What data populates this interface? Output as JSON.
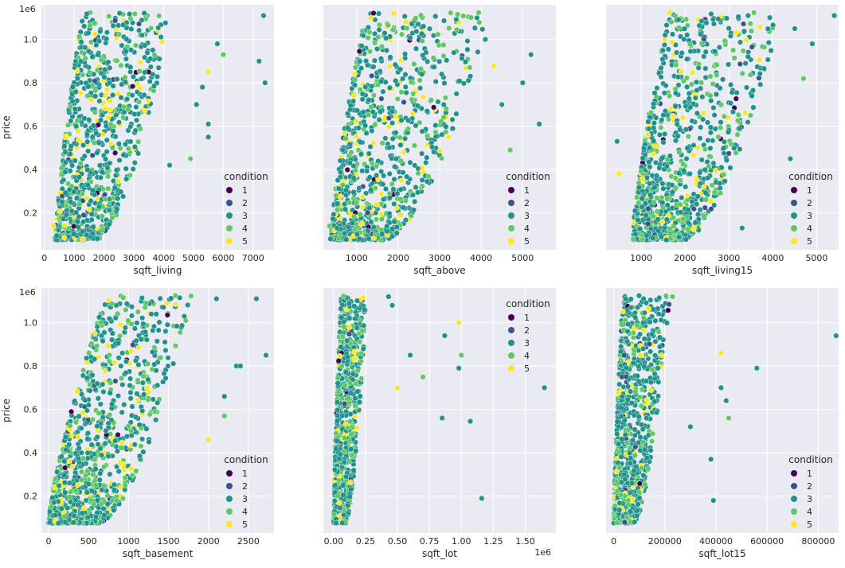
{
  "colors": {
    "panel_bg": "#eaeaf2",
    "grid": "#ffffff",
    "condition": {
      "1": "#440154",
      "2": "#3b528b",
      "3": "#21918c",
      "4": "#5ec962",
      "5": "#fde725"
    }
  },
  "legend": {
    "title": "condition",
    "labels": [
      "1",
      "2",
      "3",
      "4",
      "5"
    ]
  },
  "chart_data": [
    {
      "type": "scatter",
      "name": "sqft_living",
      "xlabel": "sqft_living",
      "ylabel": "price",
      "y_multiplier": "1e6",
      "x_multiplier": "",
      "xlim": [
        -100,
        7700
      ],
      "ylim": [
        30000,
        1160000
      ],
      "xticks": [
        0,
        1000,
        2000,
        3000,
        4000,
        5000,
        6000,
        7000
      ],
      "xtick_labels": [
        "0",
        "1000",
        "2000",
        "3000",
        "4000",
        "5000",
        "6000",
        "7000"
      ],
      "yticks": [
        200000,
        400000,
        600000,
        800000,
        1000000
      ],
      "ytick_labels": [
        "0.2",
        "0.4",
        "0.6",
        "0.8",
        "1.0"
      ],
      "legend_position": "lower-right",
      "cloud": {
        "x_min": 370,
        "x_max": 4300,
        "x_upper_mid": 1900,
        "y_min": 75000,
        "y_max": 1125000
      },
      "outliers": [
        [
          7400,
          800000
        ],
        [
          7200,
          900000
        ],
        [
          7350,
          1110000
        ],
        [
          6000,
          930000
        ],
        [
          5800,
          980000
        ],
        [
          5500,
          850000
        ],
        [
          5300,
          780000
        ],
        [
          5100,
          700000
        ],
        [
          4900,
          450000
        ],
        [
          5500,
          610000
        ],
        [
          5500,
          550000
        ],
        [
          4200,
          420000
        ],
        [
          300,
          140000
        ]
      ]
    },
    {
      "type": "scatter",
      "name": "sqft_above",
      "xlabel": "sqft_above",
      "ylabel": "",
      "y_multiplier": "",
      "x_multiplier": "",
      "xlim": [
        200,
        5800
      ],
      "ylim": [
        30000,
        1160000
      ],
      "xticks": [
        1000,
        2000,
        3000,
        4000,
        5000
      ],
      "xtick_labels": [
        "1000",
        "2000",
        "3000",
        "4000",
        "5000"
      ],
      "yticks": [
        200000,
        400000,
        600000,
        800000,
        1000000
      ],
      "ytick_labels": [
        "",
        "",
        "",
        "",
        ""
      ],
      "legend_position": "lower-right",
      "cloud": {
        "x_min": 370,
        "x_max": 4200,
        "x_upper_mid": 1800,
        "y_min": 75000,
        "y_max": 1125000
      },
      "outliers": [
        [
          5400,
          610000
        ],
        [
          5200,
          930000
        ],
        [
          5000,
          800000
        ],
        [
          4700,
          490000
        ],
        [
          4500,
          700000
        ],
        [
          4300,
          880000
        ],
        [
          4100,
          1000000
        ],
        [
          3900,
          1100000
        ],
        [
          350,
          140000
        ]
      ]
    },
    {
      "type": "scatter",
      "name": "sqft_living15",
      "xlabel": "sqft_living15",
      "ylabel": "",
      "y_multiplier": "",
      "x_multiplier": "",
      "xlim": [
        200,
        5500
      ],
      "ylim": [
        30000,
        1160000
      ],
      "xticks": [
        1000,
        2000,
        3000,
        4000,
        5000
      ],
      "xtick_labels": [
        "1000",
        "2000",
        "3000",
        "4000",
        "5000"
      ],
      "yticks": [
        200000,
        400000,
        600000,
        800000,
        1000000
      ],
      "ytick_labels": [
        "",
        "",
        "",
        "",
        ""
      ],
      "legend_position": "lower-right",
      "cloud": {
        "x_min": 800,
        "x_max": 4200,
        "x_upper_mid": 2200,
        "y_min": 75000,
        "y_max": 1125000
      },
      "outliers": [
        [
          5400,
          1110000
        ],
        [
          4900,
          980000
        ],
        [
          4400,
          450000
        ],
        [
          4700,
          820000
        ],
        [
          450,
          530000
        ],
        [
          500,
          380000
        ],
        [
          3300,
          130000
        ],
        [
          4500,
          1050000
        ]
      ]
    },
    {
      "type": "scatter",
      "name": "sqft_basement",
      "xlabel": "sqft_basement",
      "ylabel": "price",
      "y_multiplier": "1e6",
      "x_multiplier": "",
      "xlim": [
        -90,
        2820
      ],
      "ylim": [
        30000,
        1160000
      ],
      "xticks": [
        0,
        500,
        1000,
        1500,
        2000,
        2500
      ],
      "xtick_labels": [
        "0",
        "500",
        "1000",
        "1500",
        "2000",
        "2500"
      ],
      "yticks": [
        200000,
        400000,
        600000,
        800000,
        1000000
      ],
      "ytick_labels": [
        "0.2",
        "0.4",
        "0.6",
        "0.8",
        "1.0"
      ],
      "legend_position": "lower-right",
      "cloud": {
        "x_min": 0,
        "x_max": 1800,
        "x_upper_mid": 1200,
        "y_min": 75000,
        "y_max": 1125000
      },
      "outliers": [
        [
          2720,
          850000
        ],
        [
          2600,
          1110000
        ],
        [
          2350,
          800000
        ],
        [
          2200,
          570000
        ],
        [
          2100,
          1110000
        ],
        [
          2000,
          460000
        ],
        [
          2400,
          800000
        ],
        [
          2200,
          660000
        ]
      ]
    },
    {
      "type": "scatter",
      "name": "sqft_lot",
      "xlabel": "sqft_lot",
      "ylabel": "",
      "y_multiplier": "",
      "x_multiplier": "1e6",
      "xlim": [
        -80000,
        1740000
      ],
      "ylim": [
        30000,
        1160000
      ],
      "xticks": [
        0,
        250000,
        500000,
        750000,
        1000000,
        1250000,
        1500000
      ],
      "xtick_labels": [
        "0.00",
        "0.25",
        "0.50",
        "0.75",
        "1.00",
        "1.25",
        "1.50"
      ],
      "yticks": [
        200000,
        400000,
        600000,
        800000,
        1000000
      ],
      "ytick_labels": [
        "",
        "",
        "",
        "",
        ""
      ],
      "legend_position": "upper-right",
      "cloud": {
        "x_min": 0,
        "x_max": 260000,
        "x_upper_mid": 100000,
        "y_min": 75000,
        "y_max": 1125000
      },
      "outliers": [
        [
          1650000,
          700000
        ],
        [
          1160000,
          190000
        ],
        [
          1070000,
          545000
        ],
        [
          1000000,
          850000
        ],
        [
          980000,
          790000
        ],
        [
          980000,
          1000000
        ],
        [
          850000,
          560000
        ],
        [
          870000,
          940000
        ],
        [
          700000,
          750000
        ],
        [
          600000,
          850000
        ],
        [
          430000,
          1120000
        ],
        [
          460000,
          1080000
        ],
        [
          500000,
          700000
        ]
      ]
    },
    {
      "type": "scatter",
      "name": "sqft_lot15",
      "xlabel": "sqft_lot15",
      "ylabel": "",
      "y_multiplier": "",
      "x_multiplier": "",
      "xlim": [
        -30000,
        880000
      ],
      "ylim": [
        30000,
        1160000
      ],
      "xticks": [
        0,
        200000,
        400000,
        600000,
        800000
      ],
      "xtick_labels": [
        "0",
        "200000",
        "400000",
        "600000",
        "800000"
      ],
      "yticks": [
        200000,
        400000,
        600000,
        800000,
        1000000
      ],
      "ytick_labels": [
        "",
        "",
        "",
        "",
        ""
      ],
      "legend_position": "lower-right",
      "cloud": {
        "x_min": 0,
        "x_max": 220000,
        "x_upper_mid": 60000,
        "y_min": 75000,
        "y_max": 1125000
      },
      "outliers": [
        [
          870000,
          940000
        ],
        [
          560000,
          790000
        ],
        [
          440000,
          640000
        ],
        [
          450000,
          560000
        ],
        [
          420000,
          700000
        ],
        [
          420000,
          860000
        ],
        [
          380000,
          370000
        ],
        [
          390000,
          180000
        ],
        [
          230000,
          1120000
        ],
        [
          300000,
          520000
        ]
      ]
    }
  ]
}
